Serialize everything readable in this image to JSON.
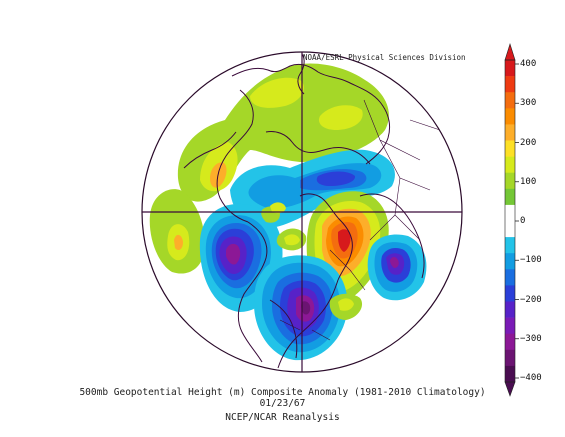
{
  "credit": "NOAA/ESRL Physical Sciences Division",
  "caption": {
    "line1": "500mb Geopotential Height (m) Composite Anomaly (1981-2010 Climatology)",
    "line2": "01/23/67",
    "line3": "NCEP/NCAR Reanalysis"
  },
  "colorbar": {
    "labels": [
      "400",
      "300",
      "200",
      "100",
      "0",
      "−100",
      "−200",
      "−300",
      "−400"
    ],
    "bins": [
      {
        "color": "#d7191c"
      },
      {
        "color": "#ee3b12"
      },
      {
        "color": "#f46d0f"
      },
      {
        "color": "#fb8c00"
      },
      {
        "color": "#fdae2a"
      },
      {
        "color": "#fde026"
      },
      {
        "color": "#d6ea1c"
      },
      {
        "color": "#a5d728"
      },
      {
        "color": "#74c736"
      },
      {
        "color": "#ffffff"
      },
      {
        "color": "#ffffff"
      },
      {
        "color": "#23c3e8"
      },
      {
        "color": "#129de2"
      },
      {
        "color": "#1a6ee0"
      },
      {
        "color": "#2b3fd8"
      },
      {
        "color": "#5722c8"
      },
      {
        "color": "#7a1bb6"
      },
      {
        "color": "#8c1896"
      },
      {
        "color": "#6b1472"
      },
      {
        "color": "#4a0d51"
      }
    ]
  }
}
